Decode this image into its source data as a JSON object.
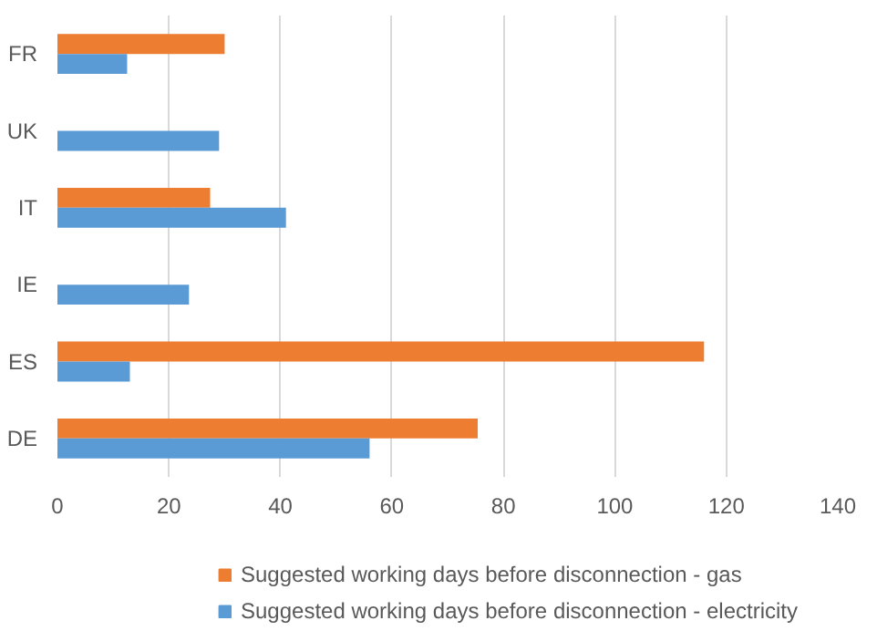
{
  "chart_data": {
    "type": "bar",
    "orientation": "horizontal",
    "categories": [
      "FR",
      "UK",
      "IT",
      "IE",
      "ES",
      "DE"
    ],
    "series": [
      {
        "name": "Suggested working days before disconnection - gas",
        "color": "#ed7d31",
        "values": [
          30,
          null,
          27.4,
          null,
          116,
          75.4
        ]
      },
      {
        "name": "Suggested working days before disconnection - electricity",
        "color": "#5b9bd5",
        "values": [
          12.5,
          29,
          41,
          23.6,
          13,
          56
        ]
      }
    ],
    "xlim": [
      0,
      140
    ],
    "xticks": [
      0,
      20,
      40,
      60,
      80,
      100,
      120,
      140
    ],
    "grid": "x",
    "legend": "bottom"
  }
}
